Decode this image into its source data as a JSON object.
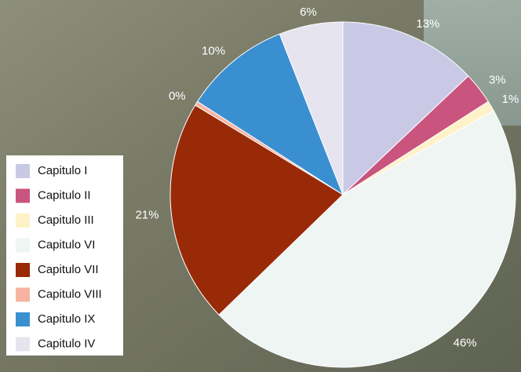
{
  "chart_data": {
    "type": "pie",
    "categories": [
      "Capitulo I",
      "Capitulo II",
      "Capitulo III",
      "Capitulo VI",
      "Capitulo VII",
      "Capitulo VIII",
      "Capitulo IX",
      "Capitulo IV"
    ],
    "values": [
      13,
      3,
      1,
      46,
      21,
      0.4,
      10,
      6
    ],
    "value_labels": [
      "13%",
      "3%",
      "1%",
      "46%",
      "21%",
      "0%",
      "10%",
      "6%"
    ],
    "colors": [
      "#c9c9e6",
      "#c9557f",
      "#fff2c8",
      "#eef5f2",
      "#992a08",
      "#f6b4a0",
      "#3a8fd0",
      "#e6e4ef"
    ],
    "legend": "left"
  }
}
